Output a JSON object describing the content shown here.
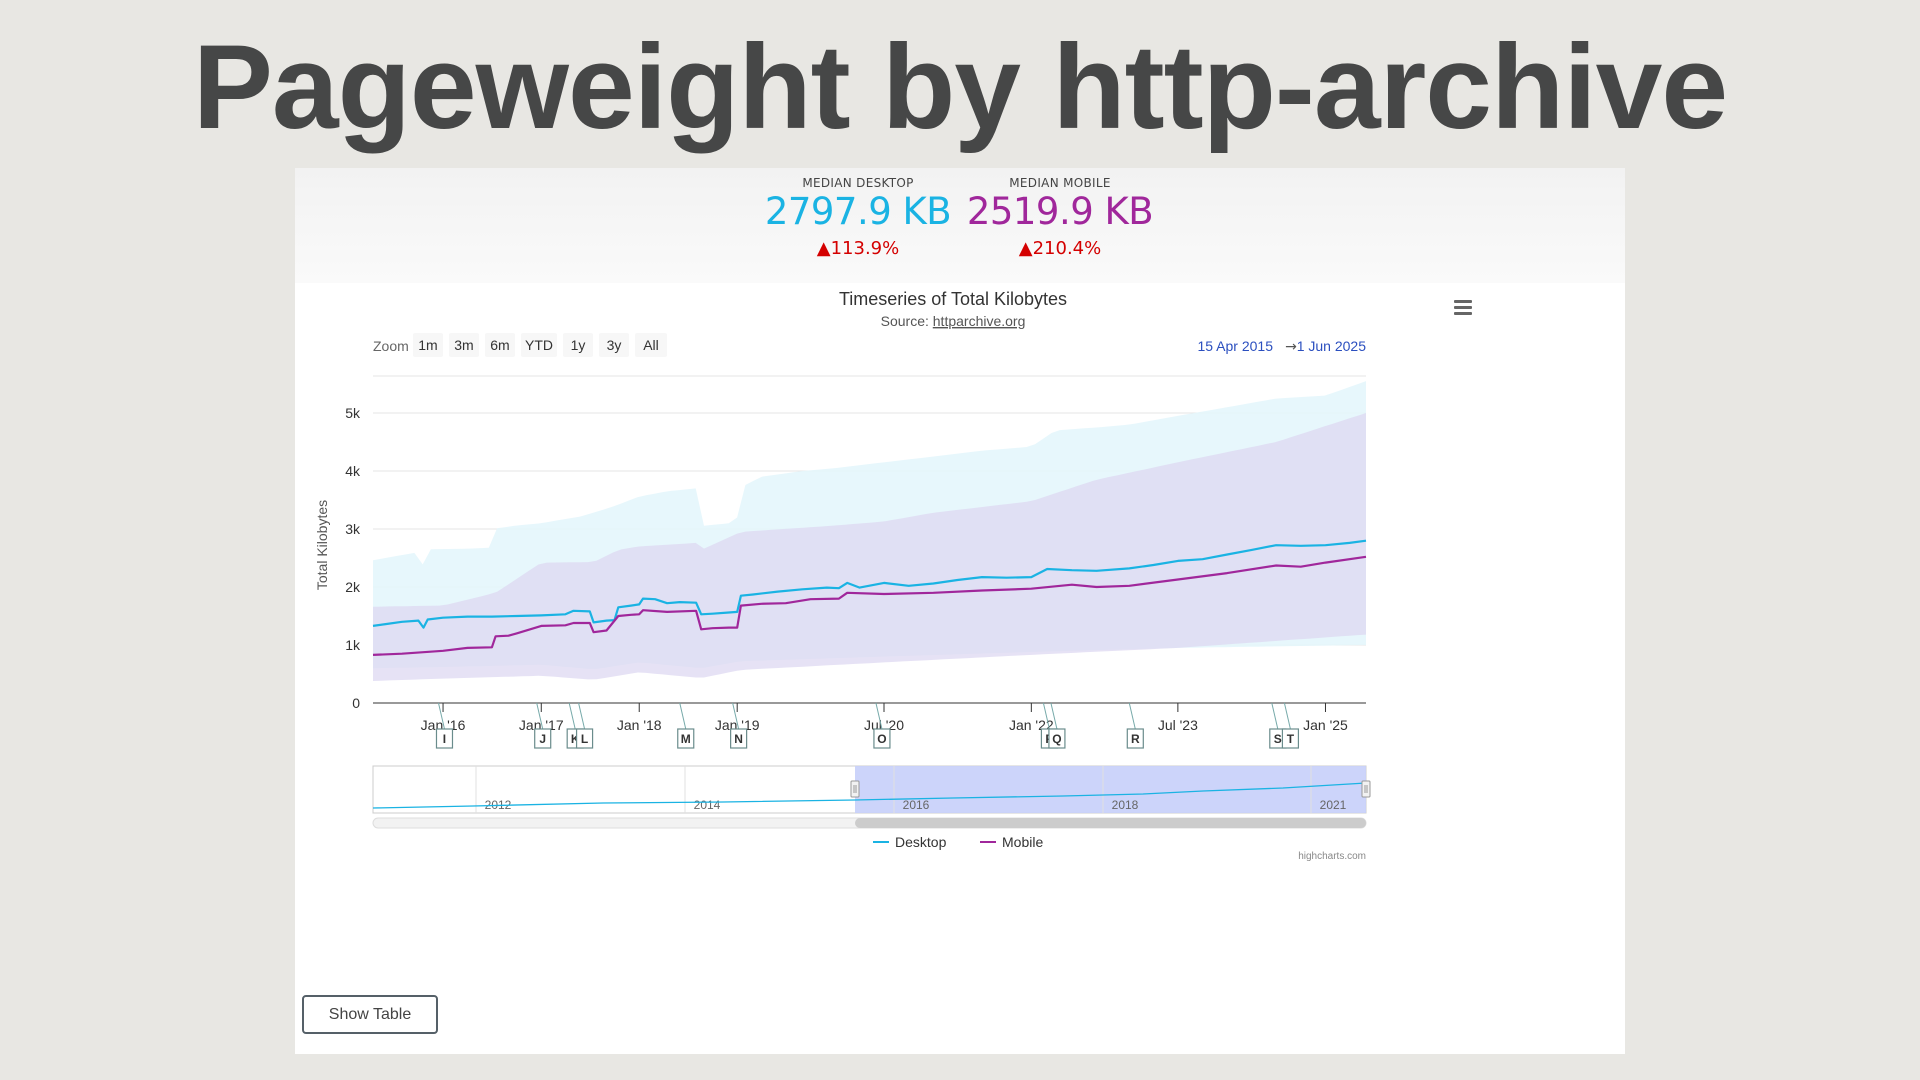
{
  "page": {
    "title": "Pageweight by http-archive"
  },
  "stats": [
    {
      "label": "MEDIAN DESKTOP",
      "value": "2797.9 KB",
      "change": "▲113.9%",
      "color": "#1ab3e3"
    },
    {
      "label": "MEDIAN MOBILE",
      "value": "2519.9 KB",
      "change": "▲210.4%",
      "color": "#a0279b"
    }
  ],
  "chart": {
    "title": "Timeseries of Total Kilobytes",
    "source_prefix": "Source: ",
    "source_link": "httparchive.org",
    "zoom_label": "Zoom",
    "zoom_buttons": [
      "1m",
      "3m",
      "6m",
      "YTD",
      "1y",
      "3y",
      "All"
    ],
    "range_from": "15 Apr 2015",
    "range_arrow": "→",
    "range_to": "1 Jun 2025",
    "credits": "highcharts.com",
    "menu_icon": "hamburger-menu-icon",
    "show_table_label": "Show Table"
  },
  "chart_data": {
    "type": "line",
    "title": "Timeseries of Total Kilobytes",
    "subtitle": "Source: httparchive.org",
    "xlabel": "",
    "ylabel": "Total Kilobytes",
    "ylim": [
      0,
      5000
    ],
    "xlim": [
      "2015-04-15",
      "2025-06-01"
    ],
    "y_ticks": [
      "0",
      "1k",
      "2k",
      "3k",
      "4k",
      "5k"
    ],
    "x_ticks": [
      {
        "label": "Jan '16",
        "date": "2016-01-01"
      },
      {
        "label": "Jan '17",
        "date": "2017-01-01"
      },
      {
        "label": "Jan '18",
        "date": "2018-01-01"
      },
      {
        "label": "Jan '19",
        "date": "2019-01-01"
      },
      {
        "label": "Jul '20",
        "date": "2020-07-01"
      },
      {
        "label": "Jan '22",
        "date": "2022-01-01"
      },
      {
        "label": "Jul '23",
        "date": "2023-07-01"
      },
      {
        "label": "Jan '25",
        "date": "2025-01-01"
      }
    ],
    "grid": true,
    "legend": "bottom-center",
    "series": [
      {
        "name": "Desktop",
        "color": "#1ab3e3",
        "band_color": "#e3f6fc",
        "points": [
          [
            "2015-04-15",
            1330
          ],
          [
            "2015-06-01",
            1360
          ],
          [
            "2015-08-01",
            1400
          ],
          [
            "2015-10-01",
            1420
          ],
          [
            "2015-10-20",
            1300
          ],
          [
            "2015-11-05",
            1440
          ],
          [
            "2016-01-01",
            1470
          ],
          [
            "2016-04-01",
            1490
          ],
          [
            "2016-07-01",
            1490
          ],
          [
            "2016-10-01",
            1500
          ],
          [
            "2017-01-01",
            1510
          ],
          [
            "2017-04-01",
            1530
          ],
          [
            "2017-05-01",
            1590
          ],
          [
            "2017-07-01",
            1580
          ],
          [
            "2017-07-15",
            1390
          ],
          [
            "2017-09-01",
            1420
          ],
          [
            "2017-10-01",
            1430
          ],
          [
            "2017-10-15",
            1650
          ],
          [
            "2017-12-01",
            1680
          ],
          [
            "2018-01-01",
            1700
          ],
          [
            "2018-01-15",
            1800
          ],
          [
            "2018-03-01",
            1790
          ],
          [
            "2018-04-15",
            1720
          ],
          [
            "2018-06-01",
            1740
          ],
          [
            "2018-08-01",
            1730
          ],
          [
            "2018-08-20",
            1530
          ],
          [
            "2018-10-01",
            1540
          ],
          [
            "2018-12-01",
            1560
          ],
          [
            "2019-01-01",
            1570
          ],
          [
            "2019-01-15",
            1850
          ],
          [
            "2019-03-01",
            1870
          ],
          [
            "2019-06-01",
            1920
          ],
          [
            "2019-09-01",
            1960
          ],
          [
            "2019-12-01",
            1990
          ],
          [
            "2020-01-15",
            1980
          ],
          [
            "2020-02-15",
            2070
          ],
          [
            "2020-04-01",
            1990
          ],
          [
            "2020-07-01",
            2070
          ],
          [
            "2020-10-01",
            2020
          ],
          [
            "2021-01-01",
            2060
          ],
          [
            "2021-04-01",
            2120
          ],
          [
            "2021-07-01",
            2170
          ],
          [
            "2021-10-01",
            2160
          ],
          [
            "2022-01-01",
            2170
          ],
          [
            "2022-03-01",
            2310
          ],
          [
            "2022-06-01",
            2290
          ],
          [
            "2022-09-01",
            2280
          ],
          [
            "2023-01-01",
            2320
          ],
          [
            "2023-04-01",
            2380
          ],
          [
            "2023-07-01",
            2450
          ],
          [
            "2023-10-01",
            2480
          ],
          [
            "2024-01-01",
            2560
          ],
          [
            "2024-04-01",
            2640
          ],
          [
            "2024-07-01",
            2720
          ],
          [
            "2024-10-01",
            2710
          ],
          [
            "2025-01-01",
            2720
          ],
          [
            "2025-04-01",
            2760
          ],
          [
            "2025-06-01",
            2798
          ]
        ],
        "band_upper": [
          [
            "2015-04-15",
            2460
          ],
          [
            "2015-08-01",
            2550
          ],
          [
            "2015-10-01",
            2600
          ],
          [
            "2015-10-20",
            2350
          ],
          [
            "2015-11-05",
            2650
          ],
          [
            "2016-04-01",
            2660
          ],
          [
            "2016-07-01",
            2680
          ],
          [
            "2016-07-15",
            3010
          ],
          [
            "2016-10-01",
            3060
          ],
          [
            "2017-01-01",
            3100
          ],
          [
            "2017-06-01",
            3220
          ],
          [
            "2017-09-01",
            3350
          ],
          [
            "2017-10-15",
            3420
          ],
          [
            "2018-01-01",
            3560
          ],
          [
            "2018-04-15",
            3650
          ],
          [
            "2018-08-01",
            3700
          ],
          [
            "2018-08-20",
            3050
          ],
          [
            "2018-12-01",
            3100
          ],
          [
            "2019-01-01",
            3200
          ],
          [
            "2019-01-15",
            3720
          ],
          [
            "2019-04-01",
            3900
          ],
          [
            "2019-09-01",
            4000
          ],
          [
            "2020-01-01",
            4050
          ],
          [
            "2020-07-01",
            4150
          ],
          [
            "2021-01-01",
            4250
          ],
          [
            "2021-07-01",
            4350
          ],
          [
            "2022-01-01",
            4420
          ],
          [
            "2022-04-01",
            4700
          ],
          [
            "2022-09-01",
            4750
          ],
          [
            "2023-01-01",
            4800
          ],
          [
            "2023-07-01",
            4950
          ],
          [
            "2024-01-01",
            5100
          ],
          [
            "2024-07-01",
            5250
          ],
          [
            "2025-01-01",
            5300
          ],
          [
            "2025-06-01",
            5550
          ]
        ],
        "band_lower": [
          [
            "2015-04-15",
            600
          ],
          [
            "2016-01-01",
            620
          ],
          [
            "2017-01-01",
            660
          ],
          [
            "2017-07-15",
            580
          ],
          [
            "2018-01-01",
            700
          ],
          [
            "2018-08-20",
            600
          ],
          [
            "2019-01-15",
            720
          ],
          [
            "2020-07-01",
            800
          ],
          [
            "2022-01-01",
            880
          ],
          [
            "2023-07-01",
            950
          ],
          [
            "2025-06-01",
            1000
          ]
        ]
      },
      {
        "name": "Mobile",
        "color": "#a0279b",
        "band_color": "#ddd8f2",
        "points": [
          [
            "2015-04-15",
            830
          ],
          [
            "2015-08-01",
            850
          ],
          [
            "2016-01-01",
            900
          ],
          [
            "2016-04-01",
            950
          ],
          [
            "2016-07-01",
            960
          ],
          [
            "2016-07-15",
            1150
          ],
          [
            "2016-09-01",
            1160
          ],
          [
            "2016-10-01",
            1200
          ],
          [
            "2017-01-01",
            1330
          ],
          [
            "2017-04-01",
            1340
          ],
          [
            "2017-05-01",
            1380
          ],
          [
            "2017-07-01",
            1380
          ],
          [
            "2017-07-15",
            1220
          ],
          [
            "2017-09-01",
            1250
          ],
          [
            "2017-10-15",
            1500
          ],
          [
            "2017-12-01",
            1520
          ],
          [
            "2018-01-01",
            1530
          ],
          [
            "2018-01-15",
            1600
          ],
          [
            "2018-04-15",
            1570
          ],
          [
            "2018-08-01",
            1590
          ],
          [
            "2018-08-20",
            1270
          ],
          [
            "2018-10-01",
            1290
          ],
          [
            "2018-12-01",
            1300
          ],
          [
            "2019-01-01",
            1300
          ],
          [
            "2019-01-15",
            1680
          ],
          [
            "2019-04-01",
            1710
          ],
          [
            "2019-07-01",
            1720
          ],
          [
            "2019-10-01",
            1790
          ],
          [
            "2020-01-15",
            1800
          ],
          [
            "2020-02-15",
            1900
          ],
          [
            "2020-07-01",
            1880
          ],
          [
            "2021-01-01",
            1900
          ],
          [
            "2021-07-01",
            1940
          ],
          [
            "2022-01-01",
            1970
          ],
          [
            "2022-06-01",
            2040
          ],
          [
            "2022-09-01",
            2000
          ],
          [
            "2023-01-01",
            2020
          ],
          [
            "2023-07-01",
            2130
          ],
          [
            "2024-01-01",
            2240
          ],
          [
            "2024-07-01",
            2370
          ],
          [
            "2024-10-01",
            2350
          ],
          [
            "2025-01-01",
            2420
          ],
          [
            "2025-06-01",
            2520
          ]
        ],
        "band_upper": [
          [
            "2015-04-15",
            1660
          ],
          [
            "2016-01-01",
            1680
          ],
          [
            "2016-07-15",
            1900
          ],
          [
            "2017-01-01",
            2420
          ],
          [
            "2017-07-15",
            2430
          ],
          [
            "2017-10-15",
            2640
          ],
          [
            "2018-01-01",
            2700
          ],
          [
            "2018-08-01",
            2760
          ],
          [
            "2018-08-20",
            2640
          ],
          [
            "2019-01-15",
            2950
          ],
          [
            "2020-01-01",
            3060
          ],
          [
            "2020-07-01",
            3130
          ],
          [
            "2021-01-01",
            3280
          ],
          [
            "2022-01-01",
            3480
          ],
          [
            "2022-09-01",
            3850
          ],
          [
            "2023-07-01",
            4150
          ],
          [
            "2024-07-01",
            4500
          ],
          [
            "2025-06-01",
            5000
          ]
        ],
        "band_lower": [
          [
            "2015-04-15",
            380
          ],
          [
            "2016-01-01",
            420
          ],
          [
            "2017-01-01",
            470
          ],
          [
            "2017-07-15",
            400
          ],
          [
            "2018-01-01",
            530
          ],
          [
            "2018-08-20",
            430
          ],
          [
            "2019-01-15",
            570
          ],
          [
            "2020-07-01",
            700
          ],
          [
            "2022-01-01",
            830
          ],
          [
            "2023-07-01",
            950
          ],
          [
            "2025-06-01",
            1180
          ]
        ]
      }
    ],
    "annotations": [
      {
        "label": "I",
        "date": "2015-12-15"
      },
      {
        "label": "J",
        "date": "2016-12-15"
      },
      {
        "label": "K",
        "date": "2017-04-15"
      },
      {
        "label": "L",
        "date": "2017-05-20"
      },
      {
        "label": "M",
        "date": "2018-06-01"
      },
      {
        "label": "N",
        "date": "2018-12-15"
      },
      {
        "label": "O",
        "date": "2020-06-01"
      },
      {
        "label": "P",
        "date": "2022-02-15"
      },
      {
        "label": "Q",
        "date": "2022-03-15"
      },
      {
        "label": "R",
        "date": "2023-01-01"
      },
      {
        "label": "S",
        "date": "2024-06-15"
      },
      {
        "label": "T",
        "date": "2024-08-01"
      }
    ],
    "navigator": {
      "year_labels": [
        "2012",
        "2014",
        "2016",
        "2018",
        "2021"
      ],
      "selected_from": "2015-04-15",
      "selected_to": "2025-06-01"
    }
  }
}
